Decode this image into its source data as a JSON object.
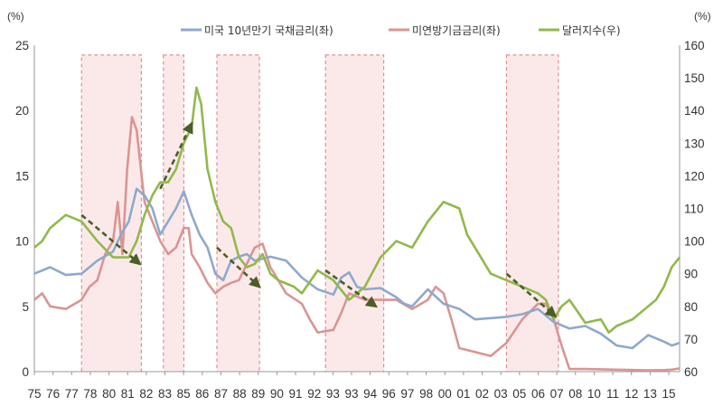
{
  "chart_data": {
    "type": "line",
    "left_unit": "(%)",
    "right_unit": "(%)",
    "left_ylim": [
      0,
      25
    ],
    "right_ylim": [
      60,
      160
    ],
    "left_ticks": [
      "0",
      "5",
      "10",
      "15",
      "20",
      "25"
    ],
    "right_ticks": [
      "60",
      "70",
      "80",
      "90",
      "100",
      "110",
      "120",
      "130",
      "140",
      "150",
      "160"
    ],
    "x_labels": [
      "75",
      "76",
      "77",
      "78",
      "79",
      "80",
      "81",
      "82",
      "83",
      "84",
      "85",
      "86",
      "87",
      "88",
      "89",
      "90",
      "91",
      "92",
      "93",
      "94",
      "95",
      "96",
      "97",
      "98",
      "99",
      "00",
      "01",
      "02",
      "03",
      "04",
      "05",
      "06",
      "07",
      "08",
      "09",
      "10",
      "11",
      "12",
      "13",
      "14",
      "15"
    ],
    "x_tick_labels": [
      "75",
      "76",
      "77",
      "78",
      "80",
      "81",
      "82",
      "83",
      "85",
      "86",
      "87",
      "88",
      "89",
      "90",
      "91",
      "92",
      "93",
      "93",
      "94",
      "96",
      "97",
      "98",
      "00",
      "01",
      "02",
      "03",
      "05",
      "06",
      "07",
      "08",
      "10",
      "11",
      "12",
      "13",
      "15"
    ],
    "x_range": [
      1975,
      2016
    ],
    "colors": {
      "treasury": "#8ea9cc",
      "fed": "#d99594",
      "dollar": "#92b84c",
      "arrow": "#4a5e28",
      "shade_fill": "#fbe9ea",
      "shade_stroke": "#d98b8b"
    },
    "legend": [
      "미국 10년만기 국채금리(좌)",
      "미연방기금금리(좌)",
      "달러지수(우)"
    ],
    "shaded_periods": [
      [
        1978.0,
        1981.8
      ],
      [
        1983.2,
        1984.5
      ],
      [
        1986.6,
        1989.3
      ],
      [
        1993.5,
        1997.2
      ],
      [
        2005.0,
        2008.3
      ]
    ],
    "trend_arrows": [
      {
        "from": [
          1978.0,
          108
        ],
        "to": [
          1981.7,
          93
        ]
      },
      {
        "from": [
          1983.0,
          116
        ],
        "to": [
          1985.0,
          136
        ]
      },
      {
        "from": [
          1986.6,
          98
        ],
        "to": [
          1989.3,
          86
        ]
      },
      {
        "from": [
          1993.5,
          91
        ],
        "to": [
          1996.7,
          80
        ]
      },
      {
        "from": [
          2005.0,
          90
        ],
        "to": [
          2008.1,
          77
        ]
      }
    ],
    "series": [
      {
        "name": "미국 10년만기 국채금리(좌)",
        "axis": "left",
        "x": [
          1975.0,
          1976.0,
          1977.0,
          1978.0,
          1979.0,
          1980.0,
          1980.5,
          1981.0,
          1981.5,
          1982.0,
          1982.5,
          1983.0,
          1983.5,
          1984.0,
          1984.5,
          1985.0,
          1985.5,
          1986.0,
          1986.5,
          1987.0,
          1987.5,
          1988.0,
          1988.5,
          1989.0,
          1990.0,
          1991.0,
          1992.0,
          1993.0,
          1994.0,
          1994.5,
          1995.0,
          1995.5,
          1996.0,
          1997.0,
          1998.0,
          1998.5,
          1999.0,
          2000.0,
          2001.0,
          2002.0,
          2003.0,
          2004.0,
          2005.0,
          2006.0,
          2007.0,
          2008.0,
          2009.0,
          2010.0,
          2011.0,
          2012.0,
          2013.0,
          2014.0,
          2015.0,
          2015.5,
          2016.0
        ],
        "values": [
          7.5,
          8.0,
          7.4,
          7.5,
          8.5,
          9.2,
          10.5,
          11.5,
          14.0,
          13.5,
          12.5,
          10.5,
          11.5,
          12.5,
          13.8,
          12.0,
          10.5,
          9.5,
          7.5,
          7.0,
          8.5,
          8.8,
          9.0,
          8.5,
          8.8,
          8.5,
          7.2,
          6.3,
          5.9,
          7.2,
          7.6,
          6.5,
          6.3,
          6.4,
          5.7,
          5.2,
          5.0,
          6.3,
          5.2,
          4.8,
          4.0,
          4.1,
          4.2,
          4.4,
          4.8,
          3.8,
          3.3,
          3.5,
          2.9,
          2.0,
          1.8,
          2.8,
          2.3,
          2.0,
          2.2
        ]
      },
      {
        "name": "미연방기금금리(좌)",
        "axis": "left",
        "x": [
          1975.0,
          1975.5,
          1976.0,
          1977.0,
          1978.0,
          1978.5,
          1979.0,
          1979.5,
          1980.0,
          1980.3,
          1980.6,
          1980.9,
          1981.2,
          1981.5,
          1982.0,
          1982.5,
          1983.0,
          1983.5,
          1984.0,
          1984.5,
          1984.8,
          1985.0,
          1985.5,
          1986.0,
          1986.5,
          1987.0,
          1987.5,
          1988.0,
          1989.0,
          1989.5,
          1990.0,
          1991.0,
          1992.0,
          1992.5,
          1993.0,
          1994.0,
          1994.5,
          1995.0,
          1996.0,
          1997.0,
          1998.0,
          1999.0,
          2000.0,
          2000.5,
          2001.0,
          2001.5,
          2002.0,
          2003.0,
          2004.0,
          2005.0,
          2006.0,
          2007.0,
          2007.5,
          2008.0,
          2008.5,
          2009.0,
          2010.0,
          2012.0,
          2014.0,
          2015.0,
          2015.5,
          2016.0
        ],
        "values": [
          5.5,
          6.0,
          5.0,
          4.8,
          5.5,
          6.5,
          7.0,
          9.0,
          10.0,
          13.0,
          9.0,
          15.5,
          19.5,
          18.5,
          13.0,
          11.5,
          10.0,
          9.0,
          9.5,
          11.0,
          11.0,
          9.0,
          8.0,
          6.8,
          6.0,
          6.5,
          6.8,
          7.0,
          9.5,
          9.8,
          8.0,
          6.0,
          5.2,
          4.0,
          3.0,
          3.2,
          4.5,
          6.0,
          5.5,
          5.5,
          5.5,
          4.8,
          5.5,
          6.5,
          6.0,
          4.0,
          1.8,
          1.5,
          1.2,
          2.2,
          4.0,
          5.2,
          5.2,
          4.0,
          2.0,
          0.2,
          0.2,
          0.15,
          0.1,
          0.12,
          0.15,
          0.25
        ]
      },
      {
        "name": "달러지수(우)",
        "axis": "right",
        "x": [
          1975.0,
          1975.5,
          1976.0,
          1977.0,
          1978.0,
          1979.0,
          1980.0,
          1981.0,
          1981.5,
          1982.0,
          1982.5,
          1983.0,
          1983.5,
          1984.0,
          1984.5,
          1985.0,
          1985.3,
          1985.6,
          1986.0,
          1986.5,
          1987.0,
          1987.5,
          1988.0,
          1988.5,
          1989.0,
          1989.5,
          1990.0,
          1990.5,
          1991.0,
          1991.5,
          1992.0,
          1993.0,
          1994.0,
          1995.0,
          1995.5,
          1996.0,
          1997.0,
          1998.0,
          1999.0,
          2000.0,
          2001.0,
          2002.0,
          2002.5,
          2003.0,
          2004.0,
          2005.0,
          2006.0,
          2007.0,
          2007.5,
          2008.0,
          2008.5,
          2009.0,
          2010.0,
          2011.0,
          2011.5,
          2012.0,
          2013.0,
          2014.0,
          2014.5,
          2015.0,
          2015.5,
          2016.0
        ],
        "values": [
          98,
          100,
          104,
          108,
          106,
          100,
          95,
          95,
          100,
          108,
          114,
          118,
          118,
          122,
          130,
          135,
          147,
          142,
          122,
          112,
          106,
          104,
          95,
          92,
          93,
          96,
          90,
          88,
          87,
          86,
          84,
          91,
          88,
          82,
          84,
          86,
          95,
          100,
          98,
          106,
          112,
          110,
          102,
          98,
          90,
          88,
          86,
          84,
          82,
          76,
          80,
          82,
          75,
          76,
          72,
          74,
          76,
          80,
          82,
          86,
          92,
          95
        ]
      }
    ]
  }
}
